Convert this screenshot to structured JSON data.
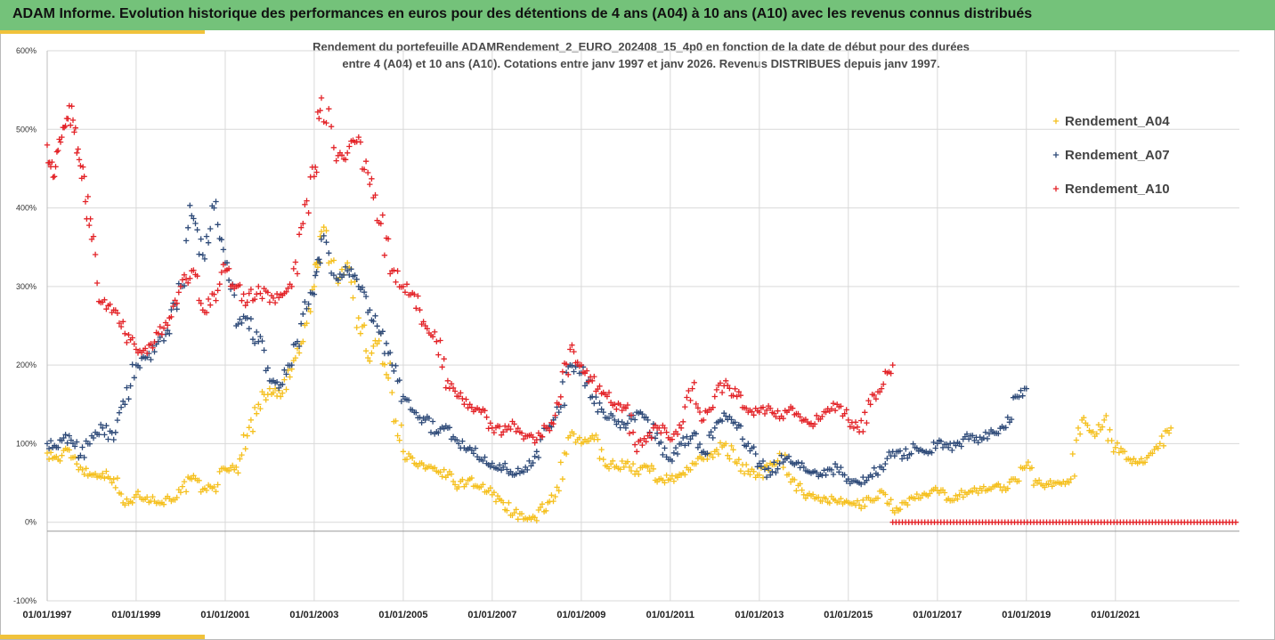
{
  "header": {
    "title": "ADAM Informe. Evolution historique des performances en euros pour des détentions de 4 ans (A04) à 10 ans (A10) avec les revenus connus distribués"
  },
  "chart_data": {
    "type": "scatter",
    "title": "",
    "subtitle_line1": "Rendement du portefeuille ADAMRendement_2_EURO_202408_15_4p0  en fonction de la date de début pour des durées",
    "subtitle_line2": "entre 4 (A04) et 10 ans (A10). Cotations entre janv 1997 et janv 2026. Revenus DISTRIBUES depuis janv 1997.",
    "xlabel": "",
    "ylabel": "",
    "x_range": [
      "1997-01-01",
      "2023-10-15"
    ],
    "ylim": [
      -100,
      600
    ],
    "y_tick_values": [
      -100,
      0,
      100,
      200,
      300,
      400,
      500,
      600
    ],
    "y_tick_labels": [
      "-100%",
      "0%",
      "100%",
      "200%",
      "300%",
      "400%",
      "500%",
      "600%"
    ],
    "x_tick_dates": [
      "1997-01-01",
      "1999-01-01",
      "2001-01-01",
      "2003-01-01",
      "2005-01-01",
      "2007-01-01",
      "2009-01-01",
      "2011-01-01",
      "2013-01-01",
      "2015-01-01",
      "2017-01-01",
      "2019-01-01",
      "2021-01-01"
    ],
    "x_tick_labels": [
      "01/01/1997",
      "01/01/1999",
      "01/01/2001",
      "01/01/2003",
      "01/01/2005",
      "01/01/2007",
      "01/01/2009",
      "01/01/2011",
      "01/01/2013",
      "01/01/2015",
      "01/01/2017",
      "01/01/2019",
      "01/01/2021"
    ],
    "grid": "horizontal",
    "legend_position": "right",
    "marker": "+",
    "series": [
      {
        "name": "Rendement_A04",
        "color": "#f5c01e",
        "points": [
          [
            "1997-01-01",
            88
          ],
          [
            "1997-04-01",
            80
          ],
          [
            "1997-07-01",
            92
          ],
          [
            "1997-10-01",
            70
          ],
          [
            "1998-01-01",
            60
          ],
          [
            "1998-04-01",
            62
          ],
          [
            "1998-07-01",
            55
          ],
          [
            "1998-10-01",
            22
          ],
          [
            "1999-01-01",
            35
          ],
          [
            "1999-04-01",
            32
          ],
          [
            "1999-07-01",
            25
          ],
          [
            "1999-10-01",
            30
          ],
          [
            "2000-01-01",
            38
          ],
          [
            "2000-04-01",
            55
          ],
          [
            "2000-07-01",
            42
          ],
          [
            "2000-10-01",
            45
          ],
          [
            "2001-01-01",
            68
          ],
          [
            "2001-04-01",
            70
          ],
          [
            "2001-07-01",
            110
          ],
          [
            "2001-10-01",
            150
          ],
          [
            "2002-01-01",
            170
          ],
          [
            "2002-04-01",
            160
          ],
          [
            "2002-07-01",
            195
          ],
          [
            "2002-10-01",
            230
          ],
          [
            "2003-01-01",
            300
          ],
          [
            "2003-03-01",
            370
          ],
          [
            "2003-07-01",
            310
          ],
          [
            "2003-10-01",
            330
          ],
          [
            "2004-01-01",
            260
          ],
          [
            "2004-04-01",
            205
          ],
          [
            "2004-07-01",
            240
          ],
          [
            "2004-10-01",
            165
          ],
          [
            "2005-01-01",
            90
          ],
          [
            "2005-04-01",
            75
          ],
          [
            "2005-07-01",
            68
          ],
          [
            "2005-10-01",
            65
          ],
          [
            "2006-01-01",
            60
          ],
          [
            "2006-04-01",
            45
          ],
          [
            "2006-07-01",
            55
          ],
          [
            "2006-10-01",
            45
          ],
          [
            "2007-01-01",
            35
          ],
          [
            "2007-04-01",
            25
          ],
          [
            "2007-07-01",
            12
          ],
          [
            "2007-10-01",
            5
          ],
          [
            "2008-01-01",
            2
          ],
          [
            "2008-04-01",
            25
          ],
          [
            "2008-07-01",
            40
          ],
          [
            "2008-10-01",
            110
          ],
          [
            "2009-01-01",
            100
          ],
          [
            "2009-04-01",
            110
          ],
          [
            "2009-07-01",
            80
          ],
          [
            "2009-10-01",
            70
          ],
          [
            "2010-01-01",
            75
          ],
          [
            "2010-04-01",
            65
          ],
          [
            "2010-07-01",
            70
          ],
          [
            "2010-10-01",
            55
          ],
          [
            "2011-01-01",
            55
          ],
          [
            "2011-04-01",
            60
          ],
          [
            "2011-07-01",
            75
          ],
          [
            "2011-10-01",
            80
          ],
          [
            "2012-01-01",
            90
          ],
          [
            "2012-04-01",
            100
          ],
          [
            "2012-07-01",
            75
          ],
          [
            "2012-10-01",
            65
          ],
          [
            "2013-01-01",
            60
          ],
          [
            "2013-04-01",
            75
          ],
          [
            "2013-07-01",
            85
          ],
          [
            "2013-10-01",
            55
          ],
          [
            "2014-01-01",
            35
          ],
          [
            "2014-04-01",
            30
          ],
          [
            "2014-07-01",
            30
          ],
          [
            "2014-10-01",
            25
          ],
          [
            "2015-01-01",
            25
          ],
          [
            "2015-04-01",
            22
          ],
          [
            "2015-07-01",
            28
          ],
          [
            "2015-10-01",
            40
          ],
          [
            "2016-01-01",
            15
          ],
          [
            "2016-04-01",
            25
          ],
          [
            "2016-07-01",
            30
          ],
          [
            "2016-10-01",
            35
          ],
          [
            "2017-01-01",
            40
          ],
          [
            "2017-04-01",
            30
          ],
          [
            "2017-07-01",
            35
          ],
          [
            "2017-10-01",
            40
          ],
          [
            "2018-01-01",
            40
          ],
          [
            "2018-04-01",
            45
          ],
          [
            "2018-07-01",
            45
          ],
          [
            "2018-10-01",
            55
          ],
          [
            "2019-01-01",
            72
          ],
          [
            "2019-04-01",
            50
          ],
          [
            "2019-07-01",
            48
          ],
          [
            "2019-10-01",
            50
          ],
          [
            "2020-01-01",
            55
          ],
          [
            "2020-04-01",
            130
          ],
          [
            "2020-07-01",
            115
          ],
          [
            "2020-10-01",
            130
          ],
          [
            "2021-01-01",
            95
          ],
          [
            "2021-04-01",
            80
          ],
          [
            "2021-07-01",
            75
          ],
          [
            "2021-10-01",
            85
          ],
          [
            "2022-01-01",
            100
          ],
          [
            "2022-04-01",
            120
          ]
        ]
      },
      {
        "name": "Rendement_A07",
        "color": "#2e4a78",
        "points": [
          [
            "1997-01-01",
            100
          ],
          [
            "1997-04-01",
            95
          ],
          [
            "1997-07-01",
            110
          ],
          [
            "1997-10-01",
            85
          ],
          [
            "1998-01-01",
            110
          ],
          [
            "1998-04-01",
            120
          ],
          [
            "1998-07-01",
            105
          ],
          [
            "1998-10-01",
            150
          ],
          [
            "1999-01-01",
            200
          ],
          [
            "1999-04-01",
            210
          ],
          [
            "1999-07-01",
            230
          ],
          [
            "1999-10-01",
            240
          ],
          [
            "2000-01-01",
            300
          ],
          [
            "2000-04-01",
            390
          ],
          [
            "2000-07-01",
            340
          ],
          [
            "2000-10-01",
            400
          ],
          [
            "2001-01-01",
            330
          ],
          [
            "2001-04-01",
            250
          ],
          [
            "2001-07-01",
            260
          ],
          [
            "2001-10-01",
            230
          ],
          [
            "2002-01-01",
            180
          ],
          [
            "2002-04-01",
            175
          ],
          [
            "2002-07-01",
            200
          ],
          [
            "2002-10-01",
            265
          ],
          [
            "2003-01-01",
            290
          ],
          [
            "2003-03-01",
            360
          ],
          [
            "2003-07-01",
            310
          ],
          [
            "2003-10-01",
            320
          ],
          [
            "2004-01-01",
            300
          ],
          [
            "2004-04-01",
            270
          ],
          [
            "2004-07-01",
            240
          ],
          [
            "2004-10-01",
            200
          ],
          [
            "2005-01-01",
            160
          ],
          [
            "2005-04-01",
            140
          ],
          [
            "2005-07-01",
            130
          ],
          [
            "2005-10-01",
            115
          ],
          [
            "2006-01-01",
            120
          ],
          [
            "2006-04-01",
            100
          ],
          [
            "2006-07-01",
            95
          ],
          [
            "2006-10-01",
            80
          ],
          [
            "2007-01-01",
            75
          ],
          [
            "2007-04-01",
            70
          ],
          [
            "2007-07-01",
            60
          ],
          [
            "2007-10-01",
            70
          ],
          [
            "2008-01-01",
            90
          ],
          [
            "2008-04-01",
            120
          ],
          [
            "2008-07-01",
            140
          ],
          [
            "2008-10-01",
            200
          ],
          [
            "2009-01-01",
            190
          ],
          [
            "2009-04-01",
            160
          ],
          [
            "2009-07-01",
            140
          ],
          [
            "2009-10-01",
            130
          ],
          [
            "2010-01-01",
            120
          ],
          [
            "2010-04-01",
            140
          ],
          [
            "2010-07-01",
            130
          ],
          [
            "2010-10-01",
            100
          ],
          [
            "2011-01-01",
            80
          ],
          [
            "2011-04-01",
            100
          ],
          [
            "2011-07-01",
            110
          ],
          [
            "2011-10-01",
            90
          ],
          [
            "2012-01-01",
            120
          ],
          [
            "2012-04-01",
            135
          ],
          [
            "2012-07-01",
            120
          ],
          [
            "2012-10-01",
            100
          ],
          [
            "2013-01-01",
            75
          ],
          [
            "2013-04-01",
            60
          ],
          [
            "2013-07-01",
            85
          ],
          [
            "2013-10-01",
            75
          ],
          [
            "2014-01-01",
            70
          ],
          [
            "2014-04-01",
            65
          ],
          [
            "2014-07-01",
            60
          ],
          [
            "2014-10-01",
            70
          ],
          [
            "2015-01-01",
            55
          ],
          [
            "2015-04-01",
            50
          ],
          [
            "2015-07-01",
            60
          ],
          [
            "2015-10-01",
            70
          ],
          [
            "2016-01-01",
            90
          ],
          [
            "2016-04-01",
            85
          ],
          [
            "2016-07-01",
            95
          ],
          [
            "2016-10-01",
            90
          ],
          [
            "2017-01-01",
            100
          ],
          [
            "2017-04-01",
            95
          ],
          [
            "2017-07-01",
            100
          ],
          [
            "2017-10-01",
            110
          ],
          [
            "2018-01-01",
            105
          ],
          [
            "2018-04-01",
            115
          ],
          [
            "2018-07-01",
            120
          ],
          [
            "2018-10-01",
            160
          ],
          [
            "2019-01-01",
            170
          ]
        ]
      },
      {
        "name": "Rendement_A10",
        "color": "#e32227",
        "points": [
          [
            "1997-01-01",
            480
          ],
          [
            "1997-03-01",
            440
          ],
          [
            "1997-05-01",
            490
          ],
          [
            "1997-07-01",
            530
          ],
          [
            "1997-09-01",
            470
          ],
          [
            "1997-11-01",
            440
          ],
          [
            "1998-01-01",
            360
          ],
          [
            "1998-04-01",
            280
          ],
          [
            "1998-07-01",
            270
          ],
          [
            "1998-10-01",
            240
          ],
          [
            "1999-01-01",
            220
          ],
          [
            "1999-04-01",
            215
          ],
          [
            "1999-07-01",
            240
          ],
          [
            "1999-10-01",
            260
          ],
          [
            "2000-01-01",
            300
          ],
          [
            "2000-04-01",
            320
          ],
          [
            "2000-07-01",
            270
          ],
          [
            "2000-10-01",
            290
          ],
          [
            "2001-01-01",
            320
          ],
          [
            "2001-04-01",
            300
          ],
          [
            "2001-07-01",
            280
          ],
          [
            "2001-10-01",
            300
          ],
          [
            "2002-01-01",
            280
          ],
          [
            "2002-04-01",
            290
          ],
          [
            "2002-07-01",
            300
          ],
          [
            "2002-10-01",
            380
          ],
          [
            "2003-01-01",
            440
          ],
          [
            "2003-03-01",
            540
          ],
          [
            "2003-07-01",
            460
          ],
          [
            "2003-10-01",
            470
          ],
          [
            "2004-01-01",
            490
          ],
          [
            "2004-04-01",
            430
          ],
          [
            "2004-07-01",
            380
          ],
          [
            "2004-10-01",
            320
          ],
          [
            "2005-01-01",
            300
          ],
          [
            "2005-04-01",
            290
          ],
          [
            "2005-07-01",
            250
          ],
          [
            "2005-10-01",
            230
          ],
          [
            "2006-01-01",
            180
          ],
          [
            "2006-04-01",
            160
          ],
          [
            "2006-07-01",
            150
          ],
          [
            "2006-10-01",
            140
          ],
          [
            "2007-01-01",
            120
          ],
          [
            "2007-04-01",
            115
          ],
          [
            "2007-07-01",
            125
          ],
          [
            "2007-10-01",
            110
          ],
          [
            "2008-01-01",
            105
          ],
          [
            "2008-04-01",
            120
          ],
          [
            "2008-07-01",
            150
          ],
          [
            "2008-10-01",
            220
          ],
          [
            "2009-01-01",
            200
          ],
          [
            "2009-04-01",
            180
          ],
          [
            "2009-07-01",
            165
          ],
          [
            "2009-10-01",
            150
          ],
          [
            "2010-01-01",
            145
          ],
          [
            "2010-04-01",
            90
          ],
          [
            "2010-07-01",
            110
          ],
          [
            "2010-10-01",
            120
          ],
          [
            "2011-01-01",
            105
          ],
          [
            "2011-04-01",
            120
          ],
          [
            "2011-07-01",
            170
          ],
          [
            "2011-10-01",
            130
          ],
          [
            "2012-01-01",
            160
          ],
          [
            "2012-04-01",
            180
          ],
          [
            "2012-07-01",
            160
          ],
          [
            "2012-10-01",
            140
          ],
          [
            "2013-01-01",
            140
          ],
          [
            "2013-04-01",
            145
          ],
          [
            "2013-07-01",
            135
          ],
          [
            "2013-10-01",
            145
          ],
          [
            "2014-01-01",
            130
          ],
          [
            "2014-04-01",
            125
          ],
          [
            "2014-07-01",
            140
          ],
          [
            "2014-10-01",
            150
          ],
          [
            "2015-01-01",
            130
          ],
          [
            "2015-04-01",
            115
          ],
          [
            "2015-07-01",
            150
          ],
          [
            "2015-10-01",
            170
          ],
          [
            "2016-01-01",
            200
          ]
        ],
        "zero_run": [
          "2016-01-01",
          "2023-10-01",
          0
        ]
      }
    ]
  }
}
